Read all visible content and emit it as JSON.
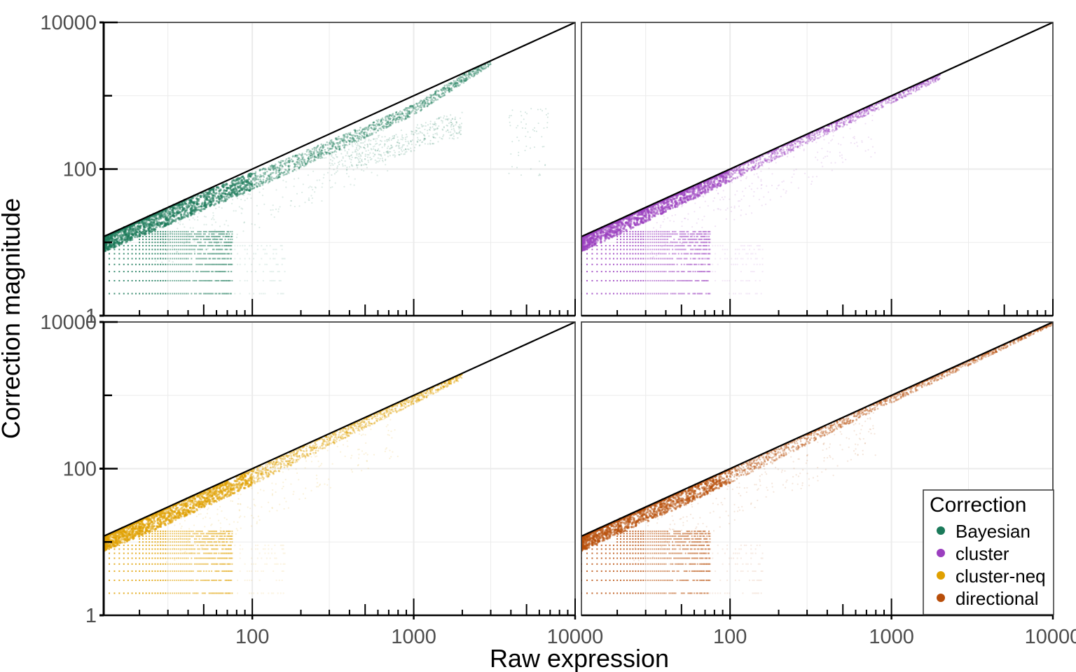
{
  "chart_data": {
    "type": "scatter",
    "xlabel": "Raw expression",
    "ylabel": "Correction magnitude",
    "x_scale": "log10",
    "y_scale": "log10",
    "xlim": [
      12,
      10000
    ],
    "ylim": [
      1,
      10000
    ],
    "grid": true,
    "x_tick_labels": [
      "100",
      "1000",
      "10000"
    ],
    "x_tick_values": [
      100,
      1000,
      10000
    ],
    "y_tick_labels": [
      "1",
      "100",
      "10000"
    ],
    "y_tick_values": [
      1,
      100,
      10000
    ],
    "reference_line": {
      "slope": 1,
      "intercept": 0,
      "description": "y = x"
    },
    "legend": {
      "title": "Correction",
      "position": "bottom-right",
      "entries": [
        "Bayesian",
        "cluster",
        "cluster-neq",
        "directional"
      ]
    },
    "colors": {
      "Bayesian": "#1b7a5a",
      "cluster": "#9b3fbf",
      "cluster-neq": "#e0a000",
      "directional": "#b84e0a"
    },
    "panels": [
      {
        "series": "Bayesian",
        "trend": {
          "x": [
            12,
            20,
            50,
            100,
            300,
            1000,
            3000
          ],
          "y": [
            11,
            17,
            38,
            70,
            200,
            650,
            3000
          ]
        },
        "outlier_cloud": {
          "x": [
            300,
            700,
            1500,
            2000
          ],
          "y": [
            120,
            200,
            350,
            400
          ]
        }
      },
      {
        "series": "cluster",
        "trend": {
          "x": [
            12,
            20,
            50,
            100,
            300,
            1000,
            2000
          ],
          "y": [
            11,
            18,
            45,
            90,
            280,
            950,
            1950
          ]
        }
      },
      {
        "series": "cluster-neq",
        "trend": {
          "x": [
            12,
            20,
            50,
            100,
            300,
            1000,
            2000
          ],
          "y": [
            11,
            17,
            40,
            80,
            260,
            920,
            1950
          ]
        }
      },
      {
        "series": "directional",
        "trend": {
          "x": [
            12,
            20,
            50,
            100,
            300,
            1000,
            3000,
            10000
          ],
          "y": [
            11,
            18,
            42,
            85,
            270,
            950,
            2900,
            9900
          ]
        }
      }
    ]
  }
}
